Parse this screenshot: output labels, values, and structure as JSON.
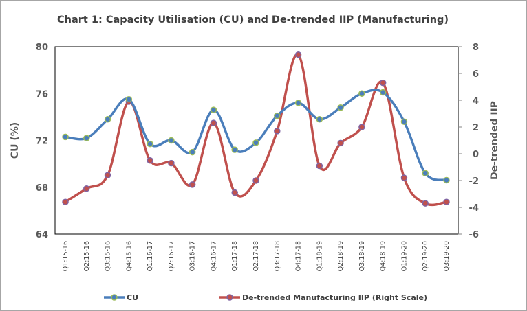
{
  "chart_data": {
    "type": "line",
    "title": "Chart 1: Capacity Utilisation (CU) and De-trended IIP (Manufacturing)",
    "categories": [
      "Q1:15-16",
      "Q2:15-16",
      "Q3:15-16",
      "Q4:15-16",
      "Q1:16-17",
      "Q2:16-17",
      "Q3:16-17",
      "Q4:16-17",
      "Q1:17-18",
      "Q2:17-18",
      "Q3:17-18",
      "Q4:17-18",
      "Q1:18-19",
      "Q2:18-19",
      "Q3:18-19",
      "Q4:18-19",
      "Q1:19-20",
      "Q2:19-20",
      "Q3:19-20"
    ],
    "ylabel": "CU (%)",
    "y2label": "De-trended IIP",
    "ylim": [
      64,
      80
    ],
    "yticks": [
      64,
      68,
      72,
      76,
      80
    ],
    "y2lim": [
      -6,
      8
    ],
    "y2ticks": [
      -6,
      -4,
      -2,
      0,
      2,
      4,
      6,
      8
    ],
    "legend_position": "bottom",
    "series": [
      {
        "name": "CU",
        "axis": "left",
        "color": "#4a7ebb",
        "marker": "#9bbb59",
        "values": [
          72.3,
          72.2,
          73.8,
          75.5,
          71.7,
          72.0,
          71.0,
          74.6,
          71.2,
          71.8,
          74.1,
          75.2,
          73.8,
          74.8,
          76.0,
          76.1,
          73.6,
          69.2,
          68.6
        ]
      },
      {
        "name": "De-trended Manufacturing IIP (Right Scale)",
        "axis": "right",
        "color": "#c0504d",
        "marker": "#8064a2",
        "values": [
          -3.6,
          -2.6,
          -1.6,
          3.9,
          -0.5,
          -0.7,
          -2.3,
          2.3,
          -2.9,
          -2.0,
          1.7,
          7.4,
          -0.9,
          0.8,
          2.0,
          5.3,
          -1.8,
          -3.7,
          -3.6
        ]
      }
    ]
  }
}
